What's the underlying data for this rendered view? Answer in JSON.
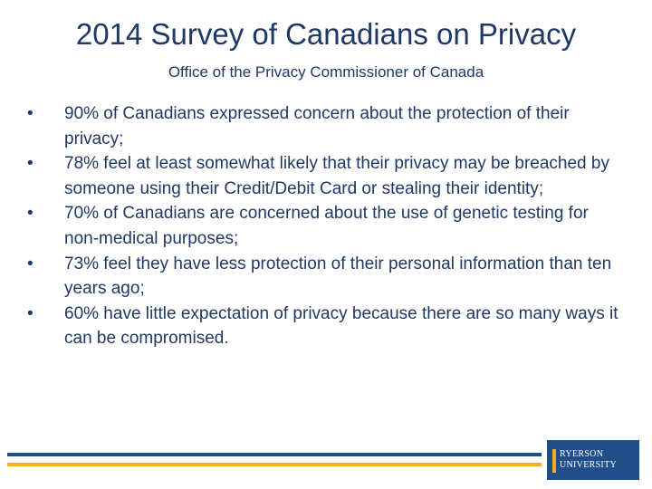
{
  "slide": {
    "title": "2014 Survey of Canadians on Privacy",
    "subtitle": "Office of the Privacy Commissioner of Canada",
    "bullets": [
      "90% of Canadians expressed concern about the protection of their privacy;",
      "78% feel at least somewhat likely that their privacy may be breached by someone using their Credit/Debit Card or stealing their identity;",
      "70% of Canadians are concerned about the use of genetic testing for non-medical purposes;",
      "73% feel they have less protection of their personal information than ten years ago;",
      "60% have little expectation of privacy because there are so many ways it can be compromised."
    ],
    "bullet_glyph": "•"
  },
  "logo": {
    "line1": "RYERSON",
    "line2": "UNIVERSITY"
  },
  "colors": {
    "text": "#1f3864",
    "rule_blue": "#1f4e89",
    "rule_gold": "#f2b01e",
    "logo_bg": "#1f4e89"
  }
}
